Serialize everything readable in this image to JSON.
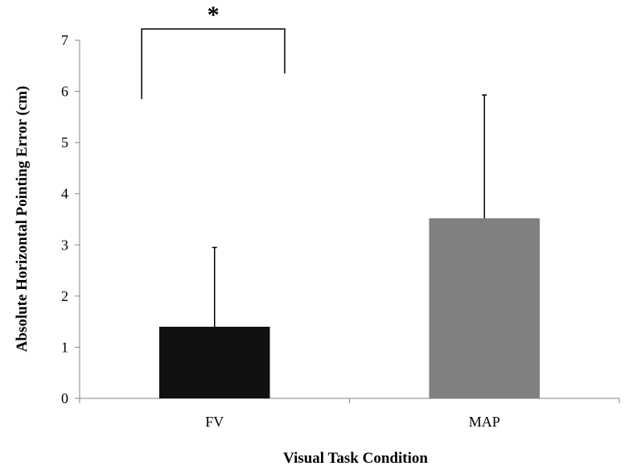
{
  "chart_data": {
    "type": "bar",
    "categories": [
      "FV",
      "MAP"
    ],
    "values": [
      1.4,
      3.52
    ],
    "error_upper": [
      2.95,
      5.93
    ],
    "colors": [
      "#111111",
      "#808080"
    ],
    "xlabel": "Visual Task Condition",
    "ylabel": "Absolute Horizontal Pointing Error (cm)",
    "ylim": [
      0,
      7
    ],
    "yticks": [
      "0",
      "1",
      "2",
      "3",
      "4",
      "5",
      "6",
      "7"
    ],
    "grid": false,
    "significance": {
      "between": [
        "FV",
        "MAP"
      ],
      "symbol": "*",
      "bracket_left_bottom": 5.85,
      "bracket_right_bottom": 6.35,
      "bracket_top": 7.0
    }
  }
}
